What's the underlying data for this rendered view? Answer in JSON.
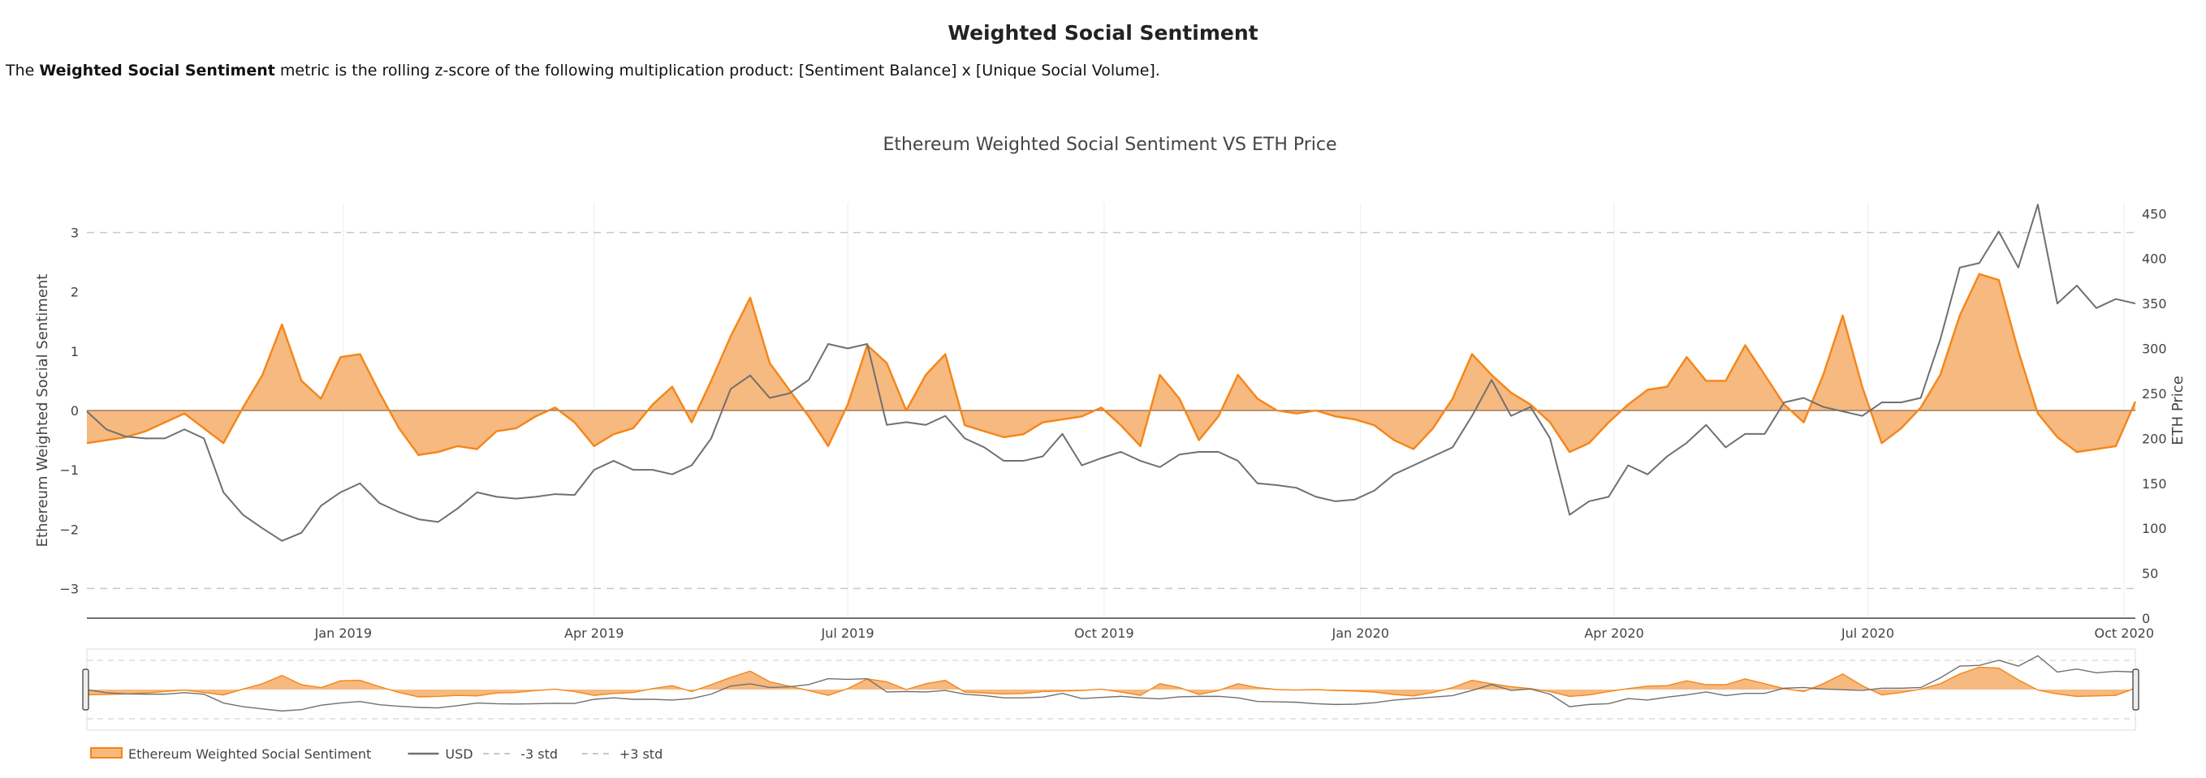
{
  "page": {
    "heading": "Weighted Social Sentiment",
    "description_prefix": "The ",
    "description_bold": "Weighted Social Sentiment",
    "description_rest": " metric is the rolling z-score of the following multiplication product: [Sentiment Balance] x [Unique Social Volume]."
  },
  "colors": {
    "sentiment_line": "#f58518",
    "sentiment_fill": "#f6b97f",
    "price_line": "#707070",
    "std_line": "#c8c8c8",
    "grid": "#eeeeee",
    "rangeslider_mask": "#999999"
  },
  "chart_data": {
    "type": "area",
    "title": "Ethereum Weighted Social Sentiment VS ETH Price",
    "y_left_label": "Ethereum Weighted Social Sentiment",
    "y_right_label": "ETH Price",
    "x_range": [
      "2018-10-01",
      "2020-10-05"
    ],
    "y_left_range": [
      -3.5,
      3.5
    ],
    "y_right_range": [
      0,
      462
    ],
    "y_left_ticks": [
      {
        "v": -3,
        "label": "−3"
      },
      {
        "v": -2,
        "label": "−2"
      },
      {
        "v": -1,
        "label": "−1"
      },
      {
        "v": 0,
        "label": "0"
      },
      {
        "v": 1,
        "label": "1"
      },
      {
        "v": 2,
        "label": "2"
      },
      {
        "v": 3,
        "label": "3"
      }
    ],
    "y_right_ticks": [
      {
        "v": 0,
        "label": "0"
      },
      {
        "v": 50,
        "label": "50"
      },
      {
        "v": 100,
        "label": "100"
      },
      {
        "v": 150,
        "label": "150"
      },
      {
        "v": 200,
        "label": "200"
      },
      {
        "v": 250,
        "label": "250"
      },
      {
        "v": 300,
        "label": "300"
      },
      {
        "v": 350,
        "label": "350"
      },
      {
        "v": 400,
        "label": "400"
      },
      {
        "v": 450,
        "label": "450"
      }
    ],
    "x_ticks": [
      {
        "date": "2019-01-01",
        "label": "Jan 2019"
      },
      {
        "date": "2019-04-01",
        "label": "Apr 2019"
      },
      {
        "date": "2019-07-01",
        "label": "Jul 2019"
      },
      {
        "date": "2019-10-01",
        "label": "Oct 2019"
      },
      {
        "date": "2020-01-01",
        "label": "Jan 2020"
      },
      {
        "date": "2020-04-01",
        "label": "Apr 2020"
      },
      {
        "date": "2020-07-01",
        "label": "Jul 2020"
      },
      {
        "date": "2020-10-01",
        "label": "Oct 2020"
      }
    ],
    "reference_lines": [
      {
        "name": "-3 std",
        "value": -3
      },
      {
        "name": "+3 std",
        "value": 3
      }
    ],
    "grid": true,
    "legend_position": "bottom-left",
    "legend": [
      "Ethereum Weighted Social Sentiment",
      "USD",
      "-3 std",
      "+3 std"
    ],
    "series": [
      {
        "name": "Ethereum Weighted Social Sentiment",
        "axis": "left",
        "points": [
          [
            "2018-10-01",
            -0.55
          ],
          [
            "2018-10-08",
            -0.5
          ],
          [
            "2018-10-15",
            -0.45
          ],
          [
            "2018-10-22",
            -0.35
          ],
          [
            "2018-10-29",
            -0.2
          ],
          [
            "2018-11-05",
            -0.05
          ],
          [
            "2018-11-12",
            -0.3
          ],
          [
            "2018-11-19",
            -0.55
          ],
          [
            "2018-11-26",
            0.05
          ],
          [
            "2018-12-03",
            0.6
          ],
          [
            "2018-12-10",
            1.45
          ],
          [
            "2018-12-17",
            0.5
          ],
          [
            "2018-12-24",
            0.2
          ],
          [
            "2018-12-31",
            0.9
          ],
          [
            "2019-01-07",
            0.95
          ],
          [
            "2019-01-14",
            0.3
          ],
          [
            "2019-01-21",
            -0.3
          ],
          [
            "2019-01-28",
            -0.75
          ],
          [
            "2019-02-04",
            -0.7
          ],
          [
            "2019-02-11",
            -0.6
          ],
          [
            "2019-02-18",
            -0.65
          ],
          [
            "2019-02-25",
            -0.35
          ],
          [
            "2019-03-04",
            -0.3
          ],
          [
            "2019-03-11",
            -0.1
          ],
          [
            "2019-03-18",
            0.05
          ],
          [
            "2019-03-25",
            -0.2
          ],
          [
            "2019-04-01",
            -0.6
          ],
          [
            "2019-04-08",
            -0.4
          ],
          [
            "2019-04-15",
            -0.3
          ],
          [
            "2019-04-22",
            0.1
          ],
          [
            "2019-04-29",
            0.4
          ],
          [
            "2019-05-06",
            -0.2
          ],
          [
            "2019-05-13",
            0.5
          ],
          [
            "2019-05-20",
            1.25
          ],
          [
            "2019-05-27",
            1.9
          ],
          [
            "2019-06-03",
            0.8
          ],
          [
            "2019-06-10",
            0.35
          ],
          [
            "2019-06-17",
            -0.1
          ],
          [
            "2019-06-24",
            -0.6
          ],
          [
            "2019-07-01",
            0.1
          ],
          [
            "2019-07-08",
            1.1
          ],
          [
            "2019-07-15",
            0.8
          ],
          [
            "2019-07-22",
            0.0
          ],
          [
            "2019-07-29",
            0.6
          ],
          [
            "2019-08-05",
            0.95
          ],
          [
            "2019-08-12",
            -0.25
          ],
          [
            "2019-08-19",
            -0.35
          ],
          [
            "2019-08-26",
            -0.45
          ],
          [
            "2019-09-02",
            -0.4
          ],
          [
            "2019-09-09",
            -0.2
          ],
          [
            "2019-09-16",
            -0.15
          ],
          [
            "2019-09-23",
            -0.1
          ],
          [
            "2019-09-30",
            0.05
          ],
          [
            "2019-10-07",
            -0.25
          ],
          [
            "2019-10-14",
            -0.6
          ],
          [
            "2019-10-21",
            0.6
          ],
          [
            "2019-10-28",
            0.2
          ],
          [
            "2019-11-04",
            -0.5
          ],
          [
            "2019-11-11",
            -0.1
          ],
          [
            "2019-11-18",
            0.6
          ],
          [
            "2019-11-25",
            0.2
          ],
          [
            "2019-12-02",
            0.0
          ],
          [
            "2019-12-09",
            -0.05
          ],
          [
            "2019-12-16",
            0.0
          ],
          [
            "2019-12-23",
            -0.1
          ],
          [
            "2019-12-30",
            -0.15
          ],
          [
            "2020-01-06",
            -0.25
          ],
          [
            "2020-01-13",
            -0.5
          ],
          [
            "2020-01-20",
            -0.65
          ],
          [
            "2020-01-27",
            -0.3
          ],
          [
            "2020-02-03",
            0.2
          ],
          [
            "2020-02-10",
            0.95
          ],
          [
            "2020-02-17",
            0.6
          ],
          [
            "2020-02-24",
            0.3
          ],
          [
            "2020-03-02",
            0.1
          ],
          [
            "2020-03-09",
            -0.2
          ],
          [
            "2020-03-16",
            -0.7
          ],
          [
            "2020-03-23",
            -0.55
          ],
          [
            "2020-03-30",
            -0.2
          ],
          [
            "2020-04-06",
            0.1
          ],
          [
            "2020-04-13",
            0.35
          ],
          [
            "2020-04-20",
            0.4
          ],
          [
            "2020-04-27",
            0.9
          ],
          [
            "2020-05-04",
            0.5
          ],
          [
            "2020-05-11",
            0.5
          ],
          [
            "2020-05-18",
            1.1
          ],
          [
            "2020-05-25",
            0.6
          ],
          [
            "2020-06-01",
            0.1
          ],
          [
            "2020-06-08",
            -0.2
          ],
          [
            "2020-06-15",
            0.6
          ],
          [
            "2020-06-22",
            1.6
          ],
          [
            "2020-06-29",
            0.4
          ],
          [
            "2020-07-06",
            -0.55
          ],
          [
            "2020-07-13",
            -0.3
          ],
          [
            "2020-07-20",
            0.05
          ],
          [
            "2020-07-27",
            0.6
          ],
          [
            "2020-08-03",
            1.6
          ],
          [
            "2020-08-10",
            2.3
          ],
          [
            "2020-08-17",
            2.2
          ],
          [
            "2020-08-24",
            1.0
          ],
          [
            "2020-08-31",
            -0.05
          ],
          [
            "2020-09-07",
            -0.45
          ],
          [
            "2020-09-14",
            -0.7
          ],
          [
            "2020-09-21",
            -0.65
          ],
          [
            "2020-09-28",
            -0.6
          ],
          [
            "2020-10-05",
            0.15
          ]
        ]
      },
      {
        "name": "USD",
        "axis": "right",
        "points": [
          [
            "2018-10-01",
            230
          ],
          [
            "2018-10-08",
            210
          ],
          [
            "2018-10-15",
            202
          ],
          [
            "2018-10-22",
            200
          ],
          [
            "2018-10-29",
            200
          ],
          [
            "2018-11-05",
            210
          ],
          [
            "2018-11-12",
            200
          ],
          [
            "2018-11-19",
            140
          ],
          [
            "2018-11-26",
            115
          ],
          [
            "2018-12-03",
            100
          ],
          [
            "2018-12-10",
            86
          ],
          [
            "2018-12-17",
            95
          ],
          [
            "2018-12-24",
            125
          ],
          [
            "2018-12-31",
            140
          ],
          [
            "2019-01-07",
            150
          ],
          [
            "2019-01-14",
            128
          ],
          [
            "2019-01-21",
            118
          ],
          [
            "2019-01-28",
            110
          ],
          [
            "2019-02-04",
            107
          ],
          [
            "2019-02-11",
            122
          ],
          [
            "2019-02-18",
            140
          ],
          [
            "2019-02-25",
            135
          ],
          [
            "2019-03-04",
            133
          ],
          [
            "2019-03-11",
            135
          ],
          [
            "2019-03-18",
            138
          ],
          [
            "2019-03-25",
            137
          ],
          [
            "2019-04-01",
            165
          ],
          [
            "2019-04-08",
            175
          ],
          [
            "2019-04-15",
            165
          ],
          [
            "2019-04-22",
            165
          ],
          [
            "2019-04-29",
            160
          ],
          [
            "2019-05-06",
            170
          ],
          [
            "2019-05-13",
            200
          ],
          [
            "2019-05-20",
            255
          ],
          [
            "2019-05-27",
            270
          ],
          [
            "2019-06-03",
            245
          ],
          [
            "2019-06-10",
            250
          ],
          [
            "2019-06-17",
            265
          ],
          [
            "2019-06-24",
            305
          ],
          [
            "2019-07-01",
            300
          ],
          [
            "2019-07-08",
            305
          ],
          [
            "2019-07-15",
            215
          ],
          [
            "2019-07-22",
            218
          ],
          [
            "2019-07-29",
            215
          ],
          [
            "2019-08-05",
            225
          ],
          [
            "2019-08-12",
            200
          ],
          [
            "2019-08-19",
            190
          ],
          [
            "2019-08-26",
            175
          ],
          [
            "2019-09-02",
            175
          ],
          [
            "2019-09-09",
            180
          ],
          [
            "2019-09-16",
            205
          ],
          [
            "2019-09-23",
            170
          ],
          [
            "2019-09-30",
            178
          ],
          [
            "2019-10-07",
            185
          ],
          [
            "2019-10-14",
            175
          ],
          [
            "2019-10-21",
            168
          ],
          [
            "2019-10-28",
            182
          ],
          [
            "2019-11-04",
            185
          ],
          [
            "2019-11-11",
            185
          ],
          [
            "2019-11-18",
            175
          ],
          [
            "2019-11-25",
            150
          ],
          [
            "2019-12-02",
            148
          ],
          [
            "2019-12-09",
            145
          ],
          [
            "2019-12-16",
            135
          ],
          [
            "2019-12-23",
            130
          ],
          [
            "2019-12-30",
            132
          ],
          [
            "2020-01-06",
            142
          ],
          [
            "2020-01-13",
            160
          ],
          [
            "2020-01-20",
            170
          ],
          [
            "2020-01-27",
            180
          ],
          [
            "2020-02-03",
            190
          ],
          [
            "2020-02-10",
            225
          ],
          [
            "2020-02-17",
            265
          ],
          [
            "2020-02-24",
            225
          ],
          [
            "2020-03-02",
            235
          ],
          [
            "2020-03-09",
            200
          ],
          [
            "2020-03-16",
            115
          ],
          [
            "2020-03-23",
            130
          ],
          [
            "2020-03-30",
            135
          ],
          [
            "2020-04-06",
            170
          ],
          [
            "2020-04-13",
            160
          ],
          [
            "2020-04-20",
            180
          ],
          [
            "2020-04-27",
            195
          ],
          [
            "2020-05-04",
            215
          ],
          [
            "2020-05-11",
            190
          ],
          [
            "2020-05-18",
            205
          ],
          [
            "2020-05-25",
            205
          ],
          [
            "2020-06-01",
            240
          ],
          [
            "2020-06-08",
            245
          ],
          [
            "2020-06-15",
            235
          ],
          [
            "2020-06-22",
            230
          ],
          [
            "2020-06-29",
            225
          ],
          [
            "2020-07-06",
            240
          ],
          [
            "2020-07-13",
            240
          ],
          [
            "2020-07-20",
            245
          ],
          [
            "2020-07-27",
            310
          ],
          [
            "2020-08-03",
            390
          ],
          [
            "2020-08-10",
            395
          ],
          [
            "2020-08-17",
            430
          ],
          [
            "2020-08-24",
            390
          ],
          [
            "2020-08-31",
            460
          ],
          [
            "2020-09-07",
            350
          ],
          [
            "2020-09-14",
            370
          ],
          [
            "2020-09-21",
            345
          ],
          [
            "2020-09-28",
            355
          ],
          [
            "2020-10-05",
            350
          ]
        ]
      }
    ],
    "rangeslider": {
      "visible": true,
      "selected_range": [
        "2018-10-01",
        "2020-10-05"
      ]
    }
  }
}
